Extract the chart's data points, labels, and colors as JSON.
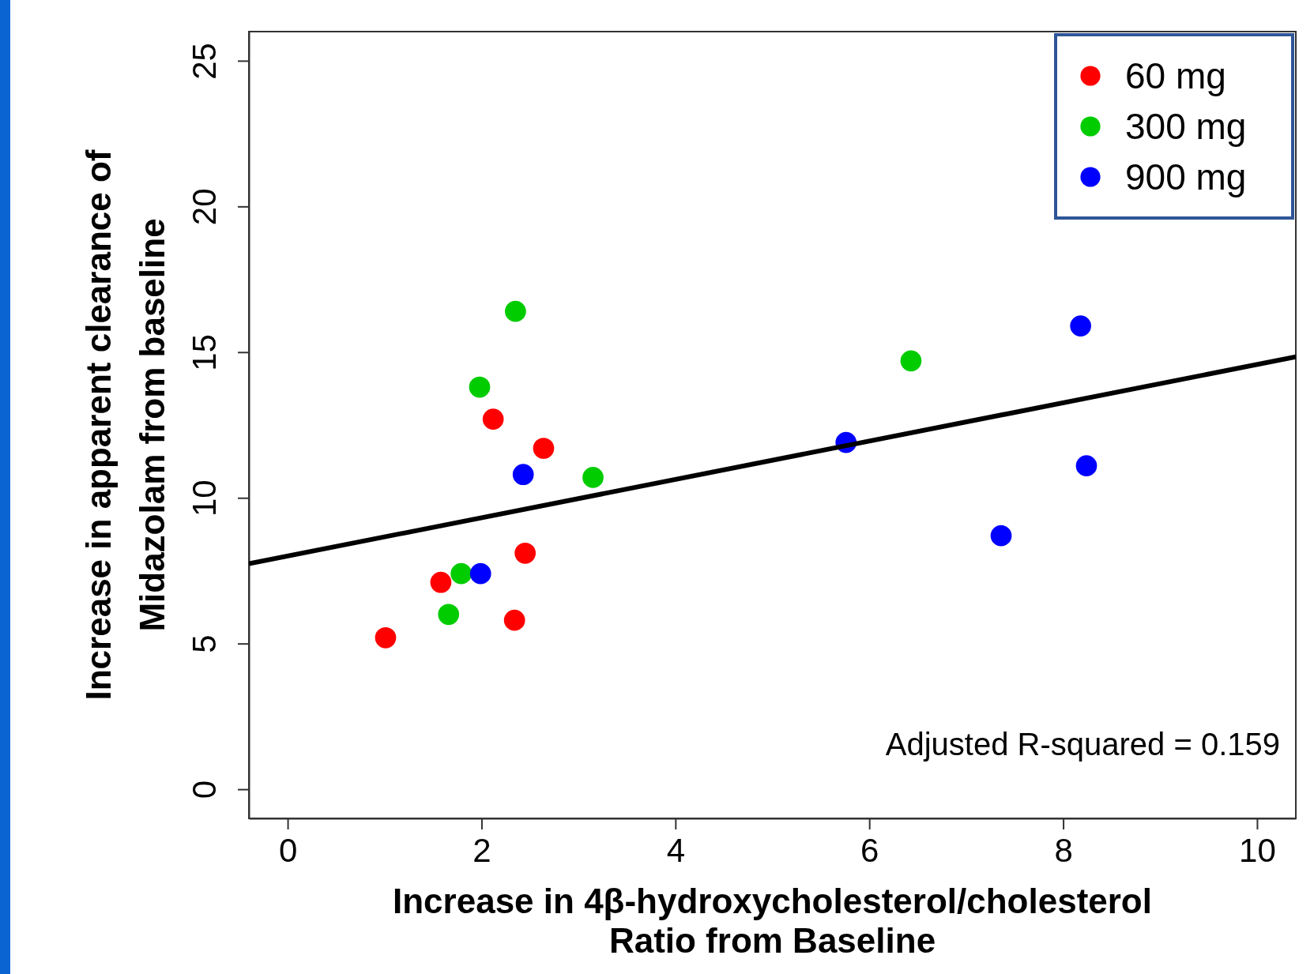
{
  "chart_data": {
    "type": "scatter",
    "xlabel": "Increase in 4β-hydroxycholesterol/cholesterol Ratio from Baseline",
    "ylabel": "Increase in apparent clearance of Midazolam from baseline",
    "xlim": [
      -0.4,
      10.4
    ],
    "xticks": [
      0,
      2,
      4,
      6,
      8,
      10
    ],
    "ylim": [
      -1,
      26
    ],
    "yticks": [
      0,
      5,
      10,
      15,
      20,
      25
    ],
    "grid": false,
    "legend": "top right",
    "series": [
      {
        "name": "60 mg",
        "color": "#ff0000",
        "x": [
          1.01,
          1.58,
          2.12,
          2.64,
          2.45,
          2.34
        ],
        "values": [
          5.2,
          7.1,
          12.7,
          11.7,
          8.1,
          5.8
        ],
        "marker": "circle"
      },
      {
        "name": "300 mg",
        "color": "#00cc00",
        "x": [
          2.35,
          1.98,
          3.15,
          1.79,
          1.66,
          6.43
        ],
        "values": [
          16.4,
          13.8,
          10.7,
          7.4,
          6.0,
          14.7
        ],
        "marker": "circle"
      },
      {
        "name": "900 mg",
        "color": "#0000ff",
        "x": [
          2.43,
          1.99,
          5.76,
          8.18,
          8.24,
          7.36
        ],
        "values": [
          10.8,
          7.4,
          11.9,
          15.9,
          11.1,
          8.7
        ],
        "marker": "circle"
      },
      {
        "type": "line",
        "color": "#000000",
        "x": [
          -0.4,
          10.4
        ],
        "values": [
          7.74,
          14.84
        ],
        "marker": "none"
      }
    ],
    "annotations": [
      "Adjusted R-squared = 0.159"
    ]
  }
}
